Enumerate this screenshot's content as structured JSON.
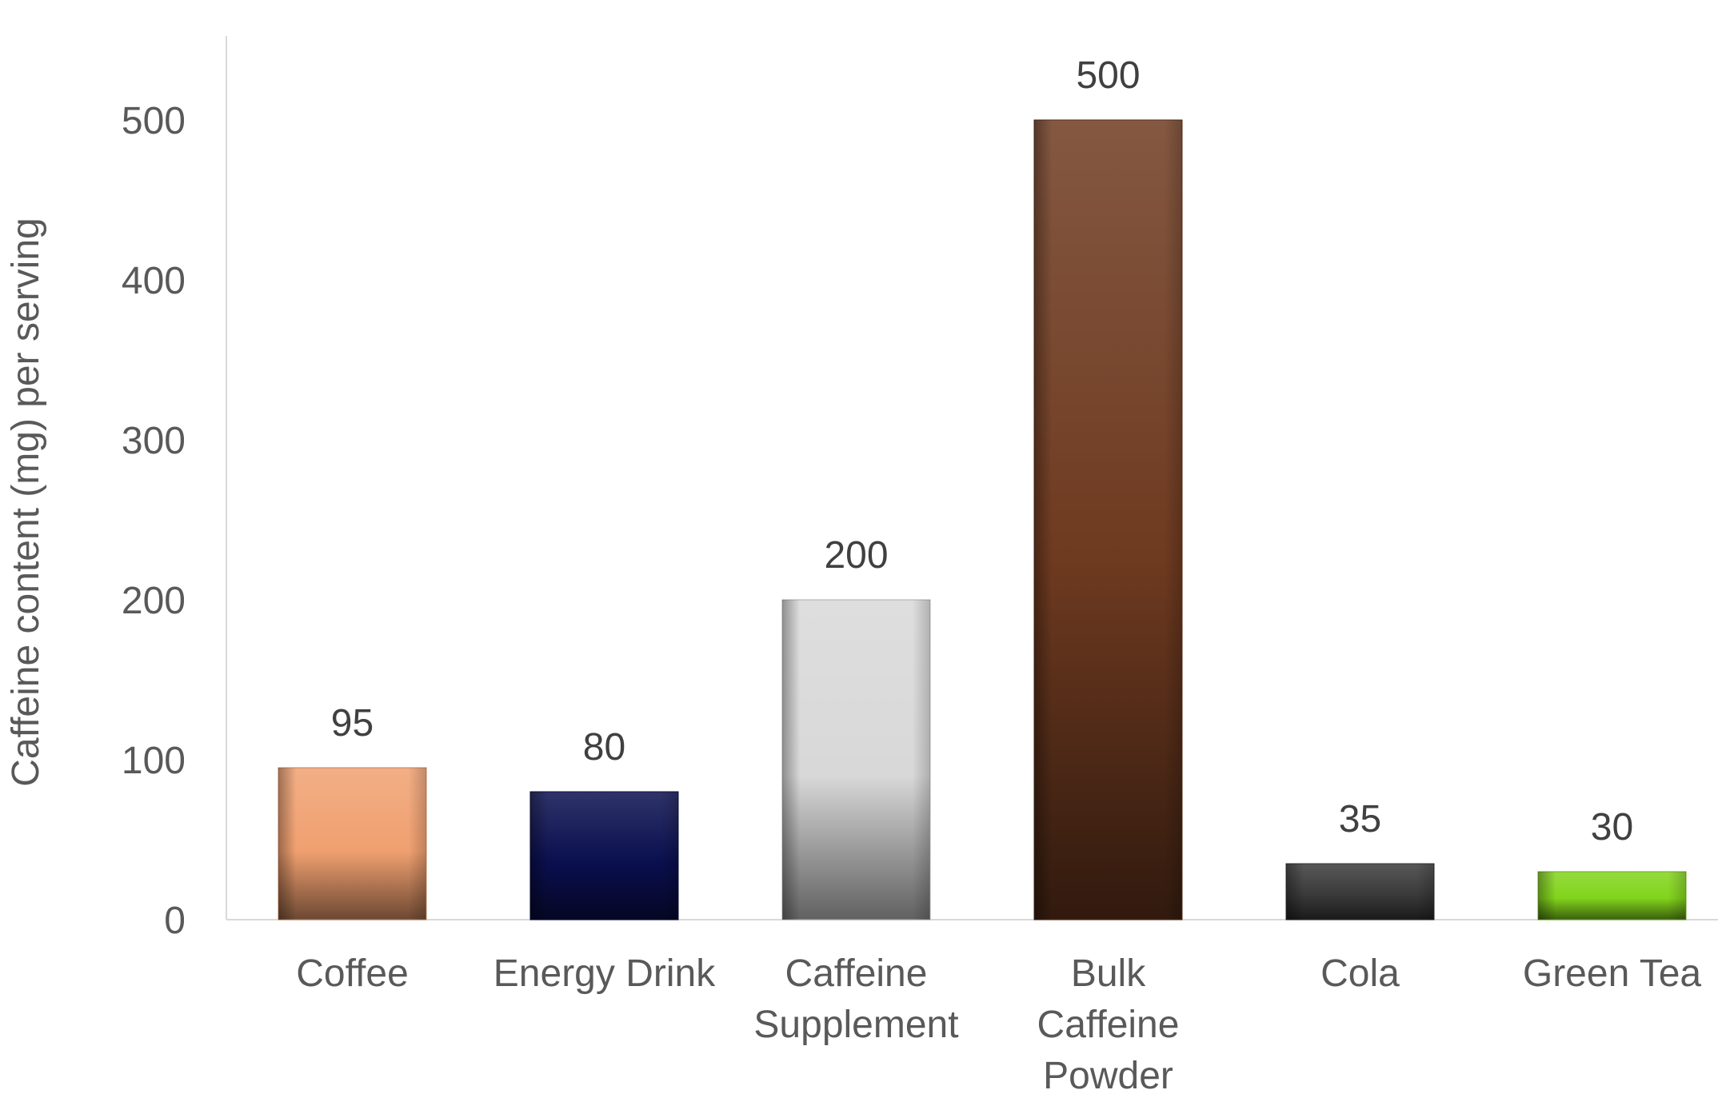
{
  "chart_data": {
    "type": "bar",
    "title": "",
    "xlabel": "",
    "ylabel": "Caffeine content (mg) per serving",
    "categories": [
      [
        "Coffee"
      ],
      [
        "Energy Drink"
      ],
      [
        "Caffeine",
        "Supplement"
      ],
      [
        "Bulk",
        "Caffeine",
        "Powder"
      ],
      [
        "Cola"
      ],
      [
        "Green Tea"
      ]
    ],
    "values": [
      95,
      80,
      200,
      500,
      35,
      30
    ],
    "value_labels": [
      "95",
      "80",
      "200",
      "500",
      "35",
      "30"
    ],
    "colors": [
      "#f0a070",
      "#0a0f4f",
      "#d8d8d8",
      "#6e3a20",
      "#3a3a3a",
      "#82d41c"
    ],
    "ylim": [
      0,
      550
    ],
    "yticks": [
      0,
      100,
      200,
      300,
      400,
      500
    ],
    "ytick_labels": [
      "0",
      "100",
      "200",
      "300",
      "400",
      "500"
    ],
    "grid": false,
    "legend": "none"
  }
}
